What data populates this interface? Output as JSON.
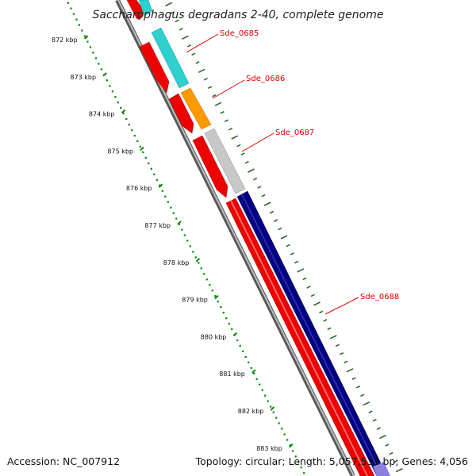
{
  "title": "Saccharophagus degradans 2-40, complete genome",
  "footer": {
    "accession": "Accession: NC_007912",
    "summary": "Topology: circular; Length: 5,057,531 bp; Genes: 4,056"
  },
  "ruler_labels": [
    "872 kbp",
    "873 kbp",
    "874 kbp",
    "875 kbp",
    "876 kbp",
    "877 kbp",
    "878 kbp",
    "879 kbp",
    "880 kbp",
    "881 kbp",
    "882 kbp",
    "883 kbp"
  ],
  "gene_labels": [
    "Sde_0685",
    "Sde_0686",
    "Sde_0687",
    "Sde_0688"
  ],
  "legend_colors": {
    "backbone": "#888888",
    "cds_forward": "#ff0000",
    "sde_0685": "#2fd0d0",
    "sde_0686": "#ff9900",
    "sde_0687": "#c8c8c8",
    "sde_0688": "#000080",
    "ruler": "#008800",
    "label_line": "#dd0000"
  }
}
